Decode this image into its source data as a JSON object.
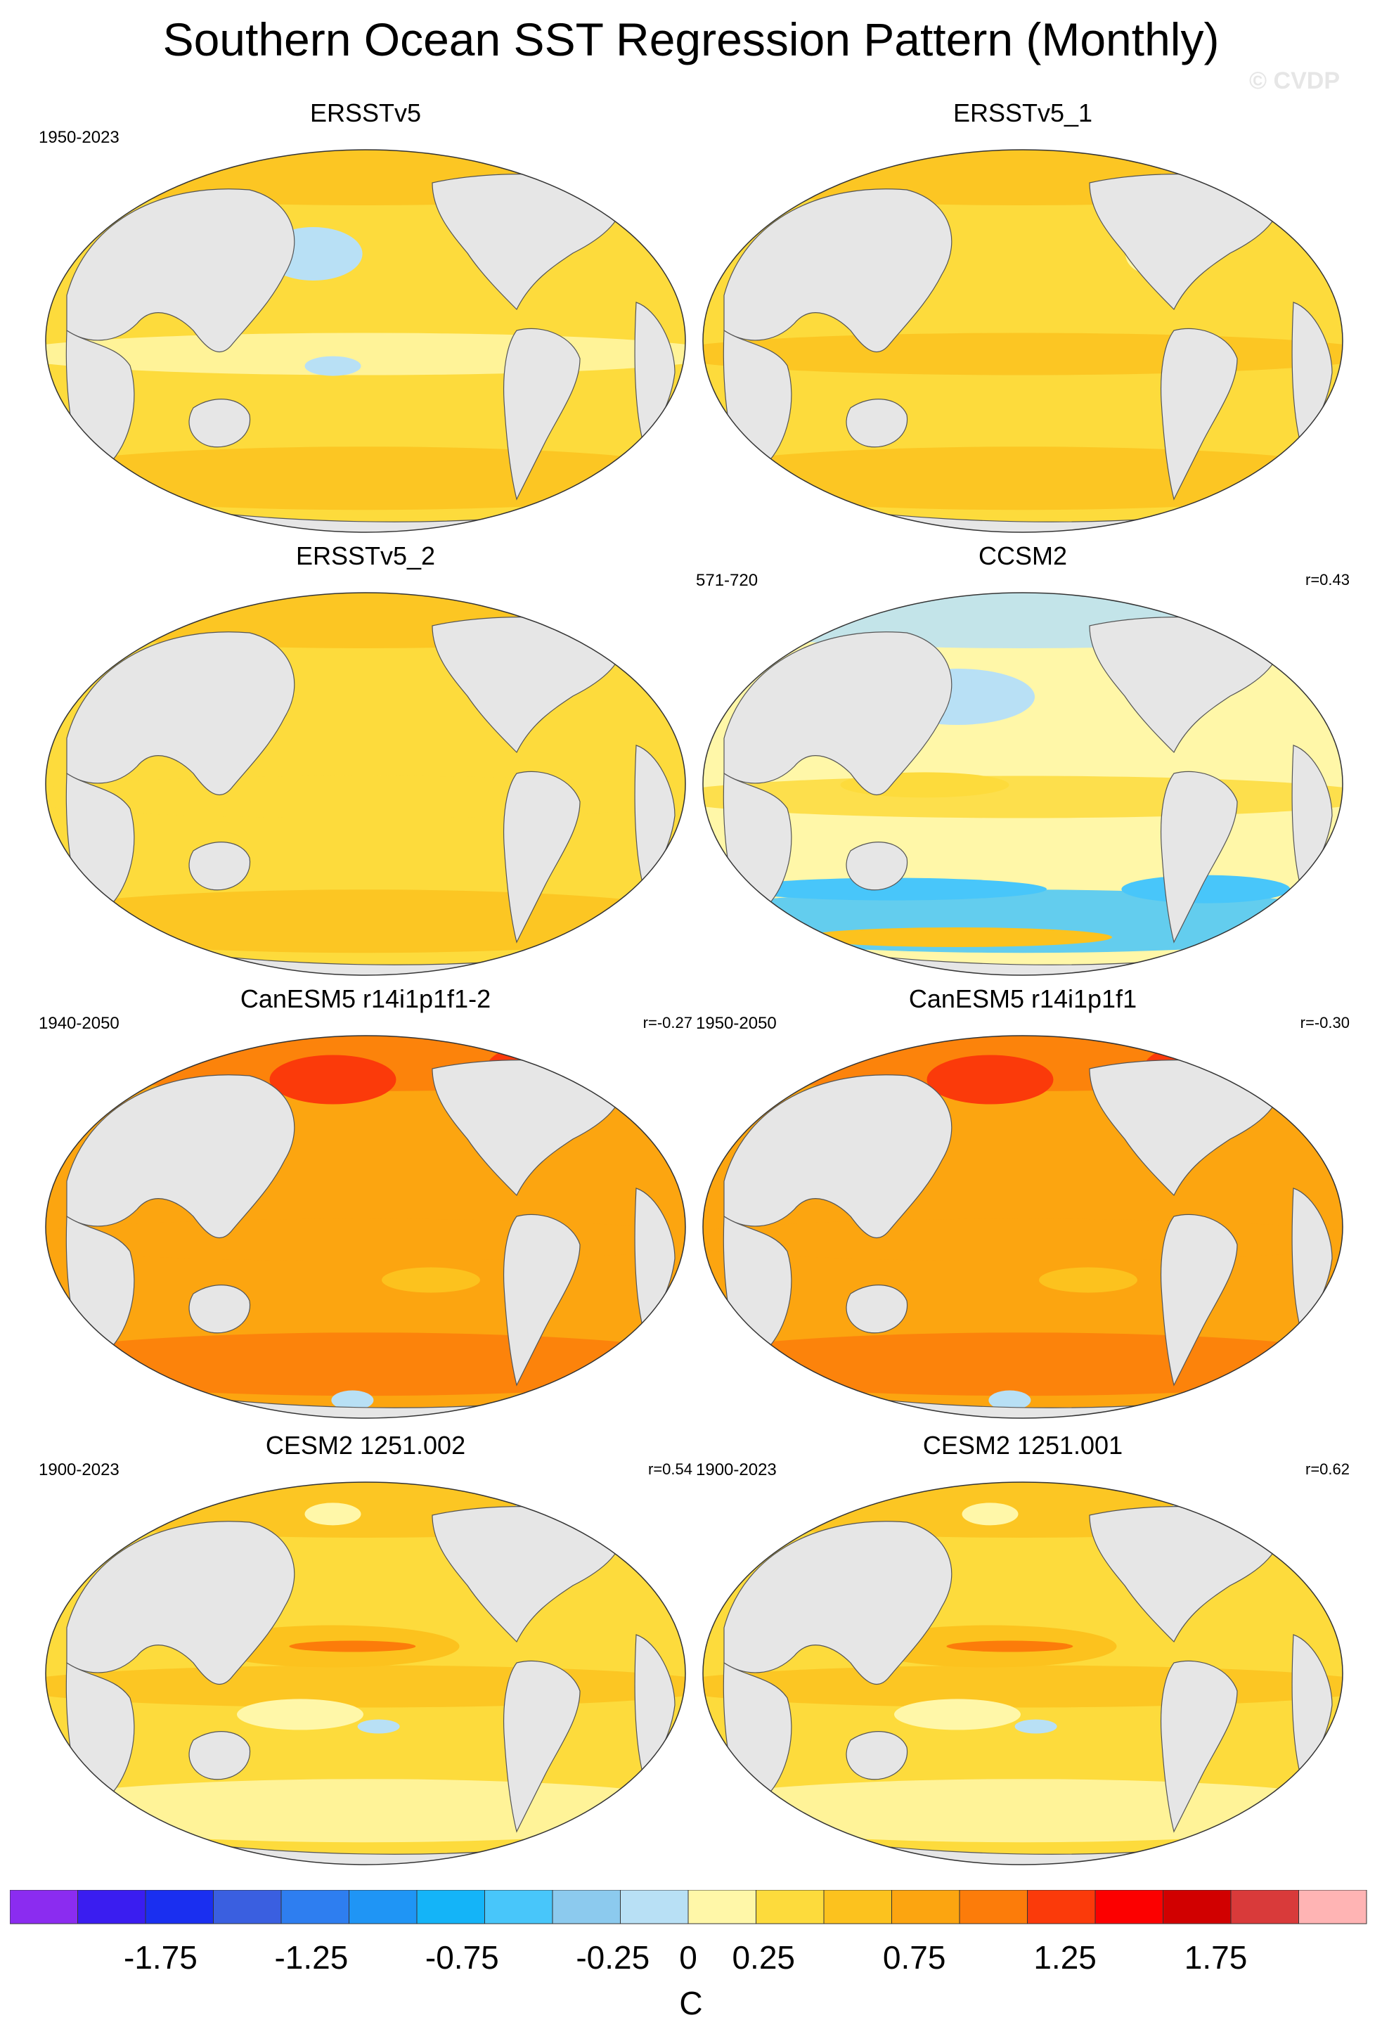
{
  "title": "Southern Ocean SST Regression Pattern (Monthly)",
  "watermark": "© CVDP",
  "panels": [
    {
      "title": "ERSSTv5",
      "years": "1950-2023",
      "corr": "",
      "style": "obs"
    },
    {
      "title": "ERSSTv5_1",
      "years": "",
      "corr": "",
      "style": "obs1"
    },
    {
      "title": "ERSSTv5_2",
      "years": "",
      "corr": "",
      "style": "obs2"
    },
    {
      "title": "CCSM2",
      "years": "571-720",
      "corr": "r=0.43",
      "style": "ccsm"
    },
    {
      "title": "CanESM5 r14i1p1f1-2",
      "years": "1940-2050",
      "corr": "r=-0.27",
      "style": "canesm"
    },
    {
      "title": "CanESM5 r14i1p1f1",
      "years": "1950-2050",
      "corr": "r=-0.30",
      "style": "canesm"
    },
    {
      "title": "CESM2 1251.002",
      "years": "1900-2023",
      "corr": "r=0.54",
      "style": "cesm"
    },
    {
      "title": "CESM2 1251.001",
      "years": "1900-2023",
      "corr": "r=0.62",
      "style": "cesm"
    }
  ],
  "colorbar": {
    "label": "C",
    "colors": [
      "#8b2cf0",
      "#3a1df0",
      "#1a2ff0",
      "#3a5fe0",
      "#2e7ef0",
      "#1f95f5",
      "#14b4f8",
      "#48c6fa",
      "#8ccaee",
      "#b8e0f5",
      "#fff7a8",
      "#fddb3c",
      "#fcc21e",
      "#fca510",
      "#fc7c0a",
      "#fb3a0a",
      "#fc0000",
      "#d10000",
      "#d93a3a",
      "#ffb4b4"
    ],
    "tick_labels": [
      "-1.75",
      "-1.25",
      "-0.75",
      "-0.25",
      "0",
      "0.25",
      "0.75",
      "1.25",
      "1.75"
    ],
    "tick_values": [
      -1.75,
      -1.25,
      -0.75,
      -0.25,
      0,
      0.25,
      0.75,
      1.25,
      1.75
    ],
    "min": -2.25,
    "max": 2.25
  }
}
